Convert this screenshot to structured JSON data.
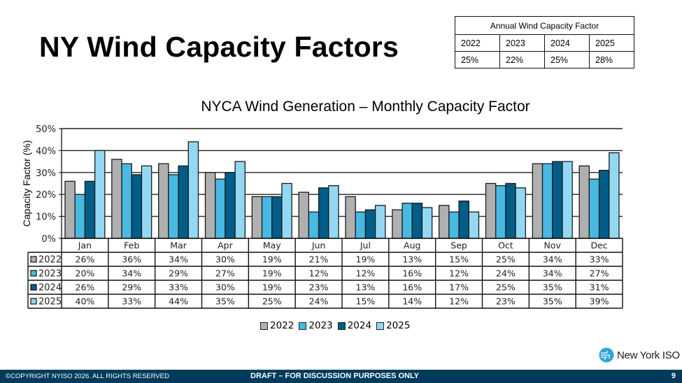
{
  "slide": {
    "title": "NY Wind Capacity Factors",
    "page_number": "9"
  },
  "annual_table": {
    "title": "Annual Wind Capacity Factor",
    "years": [
      "2022",
      "2023",
      "2024",
      "2025"
    ],
    "values": [
      "25%",
      "22%",
      "25%",
      "28%"
    ]
  },
  "chart_data": {
    "type": "bar",
    "title": "NYCA Wind Generation – Monthly Capacity Factor",
    "xlabel": "",
    "ylabel": "Capacity Factor (%)",
    "ylim": [
      0,
      50
    ],
    "yticks": [
      "0%",
      "10%",
      "20%",
      "30%",
      "40%",
      "50%"
    ],
    "ytick_values": [
      0,
      10,
      20,
      30,
      40,
      50
    ],
    "grid": true,
    "legend_position": "bottom",
    "categories": [
      "Jan",
      "Feb",
      "Mar",
      "Apr",
      "May",
      "Jun",
      "Jul",
      "Aug",
      "Sep",
      "Oct",
      "Nov",
      "Dec"
    ],
    "series": [
      {
        "name": "2022",
        "color": "#b0b0b0",
        "values": [
          26,
          36,
          34,
          30,
          19,
          21,
          19,
          13,
          15,
          25,
          34,
          33
        ]
      },
      {
        "name": "2023",
        "color": "#48b9e3",
        "values": [
          20,
          34,
          29,
          27,
          19,
          12,
          12,
          16,
          12,
          24,
          34,
          27
        ]
      },
      {
        "name": "2024",
        "color": "#005d87",
        "values": [
          26,
          29,
          33,
          30,
          19,
          23,
          13,
          16,
          17,
          25,
          35,
          31
        ]
      },
      {
        "name": "2025",
        "color": "#93d8f2",
        "values": [
          40,
          33,
          44,
          35,
          25,
          24,
          15,
          14,
          12,
          23,
          35,
          39
        ]
      }
    ],
    "data_table": true
  },
  "legend": {
    "items": [
      {
        "label": "2022",
        "color": "#b0b0b0"
      },
      {
        "label": "2023",
        "color": "#48b9e3"
      },
      {
        "label": "2024",
        "color": "#005d87"
      },
      {
        "label": "2025",
        "color": "#93d8f2"
      }
    ]
  },
  "logo": {
    "text": "New York ISO",
    "icon": "nyiso-globe-icon"
  },
  "footer": {
    "copyright": "©COPYRIGHT NYISO 2026. ALL RIGHTS RESERVED",
    "draft_notice": "DRAFT – FOR DISCUSSION PURPOSES ONLY",
    "background_color": "#003b5c"
  }
}
